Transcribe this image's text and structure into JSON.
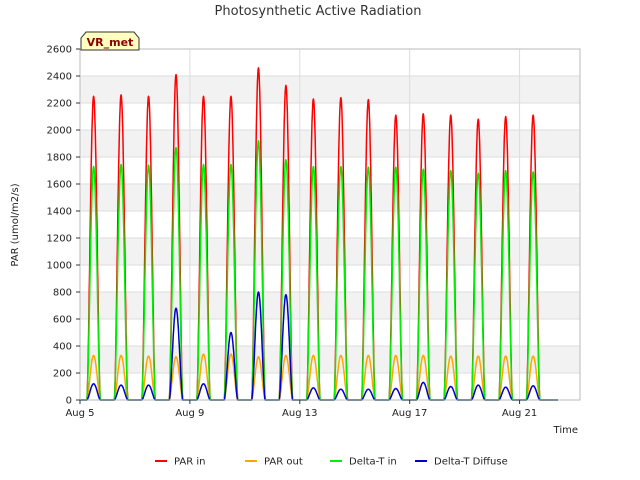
{
  "chart_data": {
    "type": "line",
    "title": "Photosynthetic Active Radiation",
    "xlabel": "Time",
    "ylabel": "PAR (umol/m2/s)",
    "badge": "VR_met",
    "xlim": [
      5.0,
      23.2
    ],
    "ylim": [
      0,
      2600
    ],
    "yticks": [
      0,
      200,
      400,
      600,
      800,
      1000,
      1200,
      1400,
      1600,
      1800,
      2000,
      2200,
      2400,
      2600
    ],
    "xticks": [
      {
        "value": 5,
        "label": "Aug 5"
      },
      {
        "value": 9,
        "label": "Aug 9"
      },
      {
        "value": 13,
        "label": "Aug 13"
      },
      {
        "value": 17,
        "label": "Aug 17"
      },
      {
        "value": 21,
        "label": "Aug 21"
      }
    ],
    "grid": true,
    "legend_position": "bottom",
    "days": [
      5,
      6,
      7,
      8,
      9,
      10,
      11,
      12,
      13,
      14,
      15,
      16,
      17,
      18,
      19,
      20,
      21,
      22
    ],
    "series": [
      {
        "name": "PAR in",
        "color": "#ff0000",
        "daily_peak": [
          2250,
          2260,
          2250,
          2410,
          2250,
          2250,
          2460,
          2330,
          2230,
          2240,
          2225,
          2110,
          2120,
          2110,
          2080,
          2100,
          2110,
          null
        ]
      },
      {
        "name": "PAR out",
        "color": "#ffa500",
        "daily_peak": [
          330,
          330,
          325,
          320,
          340,
          340,
          320,
          330,
          330,
          330,
          330,
          330,
          330,
          325,
          325,
          325,
          325,
          null
        ]
      },
      {
        "name": "Delta-T in",
        "color": "#00ee00",
        "daily_peak": [
          1730,
          1745,
          1740,
          1870,
          1745,
          1745,
          1920,
          1780,
          1730,
          1730,
          1725,
          1725,
          1710,
          1700,
          1680,
          1700,
          1690,
          null
        ]
      },
      {
        "name": "Delta-T Diffuse",
        "color": "#0000cc",
        "daily_peak": [
          120,
          110,
          110,
          680,
          120,
          500,
          800,
          780,
          90,
          80,
          80,
          85,
          130,
          100,
          110,
          95,
          105,
          null
        ]
      }
    ]
  }
}
